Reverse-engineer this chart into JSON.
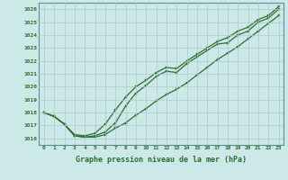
{
  "title": "Graphe pression niveau de la mer (hPa)",
  "bg_color": "#cce8e8",
  "grid_color": "#aacccc",
  "line_color": "#2d6e2d",
  "marker_color": "#2d6e2d",
  "ylim": [
    1015.5,
    1026.5
  ],
  "xlim": [
    -0.5,
    23.5
  ],
  "yticks": [
    1016,
    1017,
    1018,
    1019,
    1020,
    1021,
    1022,
    1023,
    1024,
    1025,
    1026
  ],
  "xticks": [
    0,
    1,
    2,
    3,
    4,
    5,
    6,
    7,
    8,
    9,
    10,
    11,
    12,
    13,
    14,
    15,
    16,
    17,
    18,
    19,
    20,
    21,
    22,
    23
  ],
  "line1": [
    1018.0,
    1017.7,
    1017.1,
    1016.2,
    1016.1,
    1016.1,
    1016.3,
    1016.8,
    1017.2,
    1017.8,
    1018.3,
    1018.9,
    1019.4,
    1019.8,
    1020.3,
    1020.9,
    1021.5,
    1022.1,
    1022.6,
    1023.1,
    1023.7,
    1024.3,
    1024.9,
    1025.5
  ],
  "line2": [
    1018.0,
    1017.7,
    1017.1,
    1016.2,
    1016.1,
    1016.2,
    1016.5,
    1017.2,
    1018.5,
    1019.5,
    1020.1,
    1020.8,
    1021.2,
    1021.1,
    1021.8,
    1022.3,
    1022.8,
    1023.3,
    1023.4,
    1024.0,
    1024.3,
    1025.0,
    1025.3,
    1026.0
  ],
  "line3": [
    1018.0,
    1017.7,
    1017.1,
    1016.3,
    1016.2,
    1016.4,
    1017.1,
    1018.2,
    1019.2,
    1020.0,
    1020.5,
    1021.1,
    1021.5,
    1021.4,
    1022.0,
    1022.5,
    1023.0,
    1023.5,
    1023.8,
    1024.3,
    1024.6,
    1025.2,
    1025.5,
    1026.2
  ]
}
